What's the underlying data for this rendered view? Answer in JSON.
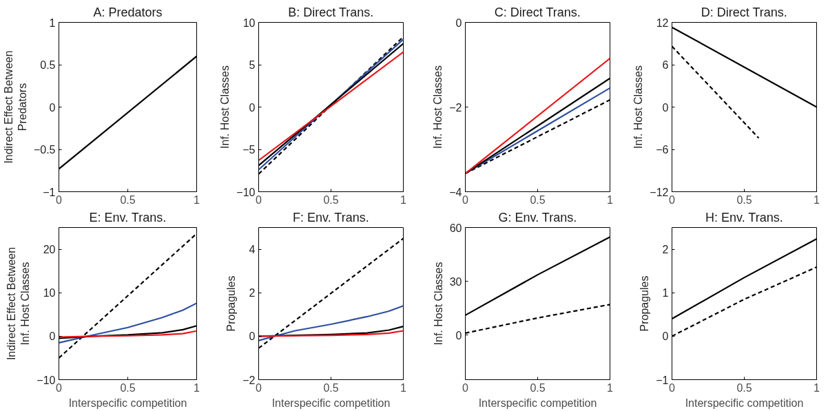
{
  "chart_data": [
    {
      "type": "line",
      "title": "A: Predators",
      "ylabel": "Indirect Effect Between Predators",
      "xlim": [
        0,
        1
      ],
      "xticks": [
        0,
        0.5,
        1
      ],
      "ylim": [
        -1,
        1
      ],
      "yticks": [
        -1,
        -0.5,
        0,
        0.5,
        1
      ],
      "line_style": "solid",
      "x": [
        0,
        1
      ],
      "series": [
        {
          "color": "#000000",
          "values": [
            -0.73,
            0.6
          ]
        }
      ]
    },
    {
      "type": "line",
      "title": "B: Direct Trans.",
      "ylabel": "Inf. Host Classes",
      "xlim": [
        0,
        1
      ],
      "xticks": [
        0,
        0.5,
        1
      ],
      "ylim": [
        -10,
        10
      ],
      "yticks": [
        -10,
        -5,
        0,
        5,
        10
      ],
      "line_style": "solid",
      "x": [
        0,
        1
      ],
      "series": [
        {
          "color": "#000000",
          "line_style": "dashed",
          "values": [
            -7.9,
            8.3
          ]
        },
        {
          "color": "#2e4ea0",
          "values": [
            -7.4,
            8.0
          ]
        },
        {
          "color": "#000000",
          "values": [
            -6.9,
            7.5
          ]
        },
        {
          "color": "#e8161b",
          "values": [
            -6.3,
            6.5
          ]
        }
      ]
    },
    {
      "type": "line",
      "title": "C: Direct Trans.",
      "ylabel": "Inf. Host Classes",
      "xlim": [
        0,
        1
      ],
      "xticks": [
        0,
        0.5,
        1
      ],
      "ylim": [
        -4,
        0
      ],
      "yticks": [
        -4,
        -2,
        0
      ],
      "line_style": "solid",
      "x": [
        0,
        1
      ],
      "series": [
        {
          "color": "#000000",
          "line_style": "dashed",
          "values": [
            -3.57,
            -1.83
          ]
        },
        {
          "color": "#2e4ea0",
          "values": [
            -3.57,
            -1.55
          ]
        },
        {
          "color": "#000000",
          "values": [
            -3.57,
            -1.32
          ]
        },
        {
          "color": "#e8161b",
          "values": [
            -3.57,
            -0.85
          ]
        }
      ]
    },
    {
      "type": "line",
      "title": "D: Direct Trans.",
      "ylabel": "Inf. Host Classes",
      "xlim": [
        0,
        1
      ],
      "xticks": [
        0,
        0.5,
        1
      ],
      "ylim": [
        -12,
        12
      ],
      "yticks": [
        -12,
        -6,
        0,
        6,
        12
      ],
      "line_style": "solid",
      "x": [
        0,
        1
      ],
      "series": [
        {
          "color": "#000000",
          "values": [
            11.3,
            0
          ]
        },
        {
          "color": "#000000",
          "line_style": "dashed",
          "x": [
            0,
            0.6
          ],
          "values": [
            8.6,
            -4.4
          ]
        }
      ]
    },
    {
      "type": "line",
      "title": "E: Env. Trans.",
      "ylabel": "Indirect Effect Between Inf. Host Classes",
      "xlabel": "Interspecific competition",
      "xlim": [
        0,
        1
      ],
      "xticks": [
        0,
        0.5,
        1
      ],
      "ylim": [
        -10,
        25
      ],
      "yticks": [
        -10,
        0,
        10,
        20
      ],
      "line_style": "solid",
      "x": [
        0,
        0.25,
        0.5,
        0.75,
        0.9,
        1
      ],
      "series": [
        {
          "color": "#000000",
          "line_style": "dashed",
          "x": [
            0,
            1
          ],
          "values": [
            -5,
            23.6
          ]
        },
        {
          "color": "#2e4ea0",
          "values": [
            -1.5,
            0.3,
            2.0,
            4.3,
            6.0,
            7.6
          ]
        },
        {
          "color": "#000000",
          "values": [
            -0.5,
            0,
            0.3,
            0.8,
            1.5,
            2.4
          ]
        },
        {
          "color": "#e8161b",
          "values": [
            -0.2,
            0,
            0.1,
            0.3,
            0.6,
            1.2
          ]
        }
      ]
    },
    {
      "type": "line",
      "title": "F: Env. Trans.",
      "ylabel": "Propagules",
      "xlabel": "Interspecific competition",
      "xlim": [
        0,
        1
      ],
      "xticks": [
        0,
        0.5,
        1
      ],
      "ylim": [
        -2,
        5
      ],
      "yticks": [
        -2,
        0,
        2,
        4
      ],
      "line_style": "solid",
      "x": [
        0,
        0.25,
        0.5,
        0.75,
        0.9,
        1
      ],
      "series": [
        {
          "color": "#000000",
          "line_style": "dashed",
          "x": [
            0,
            1
          ],
          "values": [
            -0.55,
            4.5
          ]
        },
        {
          "color": "#2e4ea0",
          "values": [
            -0.2,
            0.25,
            0.55,
            0.9,
            1.15,
            1.4
          ]
        },
        {
          "color": "#000000",
          "values": [
            0,
            0.04,
            0.08,
            0.15,
            0.28,
            0.45
          ]
        },
        {
          "color": "#e8161b",
          "values": [
            0,
            0.02,
            0.04,
            0.08,
            0.14,
            0.25
          ]
        }
      ]
    },
    {
      "type": "line",
      "title": "G: Env. Trans.",
      "ylabel": "Inf. Host Classes",
      "xlabel": "Interspecific competition",
      "xlim": [
        0,
        1
      ],
      "xticks": [
        0,
        0.5,
        1
      ],
      "ylim": [
        -25,
        60
      ],
      "yticks": [
        0,
        30,
        60
      ],
      "line_style": "solid",
      "x": [
        0,
        0.5,
        1
      ],
      "series": [
        {
          "color": "#000000",
          "values": [
            11,
            33.6,
            54.7
          ]
        },
        {
          "color": "#000000",
          "line_style": "dashed",
          "values": [
            1,
            9.5,
            17
          ]
        }
      ]
    },
    {
      "type": "line",
      "title": "H: Env. Trans.",
      "ylabel": "Propagules",
      "xlabel": "Interspecific competition",
      "xlim": [
        0,
        1
      ],
      "xticks": [
        0,
        0.5,
        1
      ],
      "ylim": [
        -1,
        2.5
      ],
      "yticks": [
        -1,
        0,
        1,
        2
      ],
      "line_style": "solid",
      "x": [
        0,
        0.5,
        1
      ],
      "series": [
        {
          "color": "#000000",
          "values": [
            0.4,
            1.35,
            2.24
          ]
        },
        {
          "color": "#000000",
          "line_style": "dashed",
          "values": [
            0,
            0.85,
            1.59
          ]
        }
      ]
    }
  ]
}
